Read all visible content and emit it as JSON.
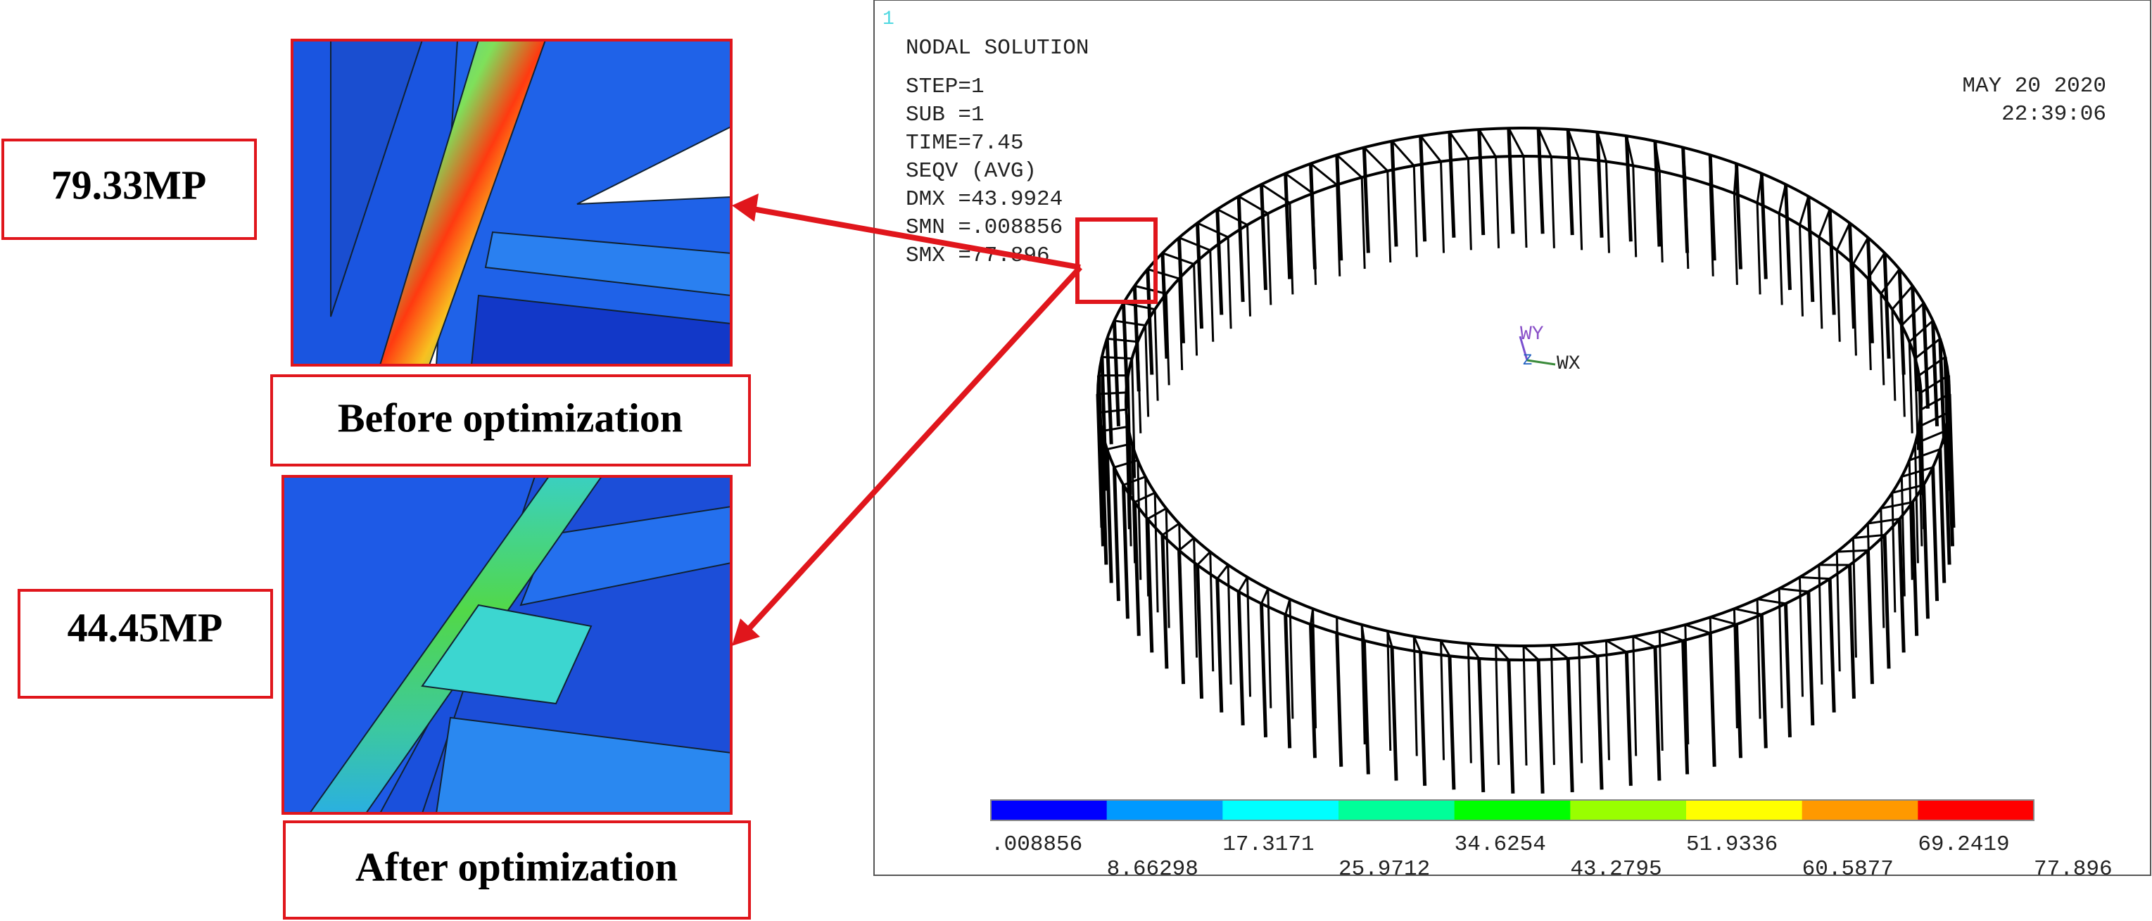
{
  "annotations": [
    {
      "value_label": "79.33MP",
      "caption": "Before optimization"
    },
    {
      "value_label": "44.45MP",
      "caption": "After optimization"
    }
  ],
  "plot": {
    "marker": "1",
    "title": "NODAL SOLUTION",
    "info": [
      "STEP=1",
      "SUB =1",
      "TIME=7.45",
      "SEQV     (AVG)",
      "DMX =43.9924",
      "SMN =.008856",
      "SMX =77.896"
    ],
    "date": "MAY 20 2020",
    "time": "22:39:06",
    "axes": [
      "WY",
      "WX",
      "Z"
    ],
    "colorbar": {
      "colors": [
        "#0000ff",
        "#0099ff",
        "#00ffff",
        "#00ff99",
        "#00ff00",
        "#99ff00",
        "#ffff00",
        "#ff9900",
        "#ff0000"
      ],
      "labels": [
        ".008856",
        "8.66298",
        "17.3171",
        "25.9712",
        "34.6254",
        "43.2795",
        "51.9336",
        "60.5877",
        "69.2419",
        "77.896"
      ]
    }
  }
}
